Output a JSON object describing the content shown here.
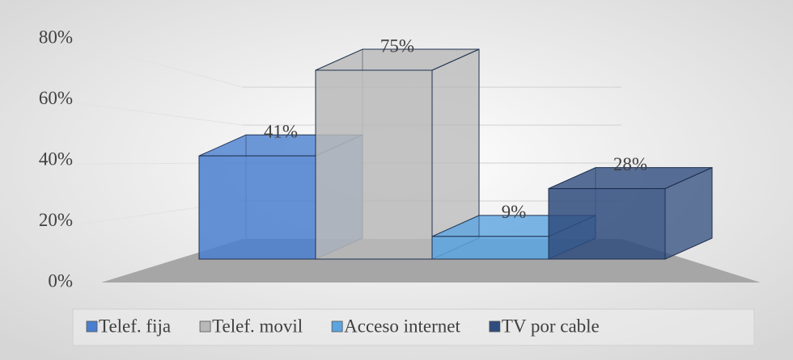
{
  "chart_data": {
    "type": "bar3d",
    "series": [
      {
        "name": "Telef. fija",
        "color": "#4a7fd0",
        "values": [
          41
        ],
        "value_labels": [
          "41%"
        ]
      },
      {
        "name": "Telef. movil",
        "color": "#b8b8b8",
        "values": [
          75
        ],
        "value_labels": [
          "75%"
        ]
      },
      {
        "name": "Acceso internet",
        "color": "#5ba4e0",
        "values": [
          9
        ],
        "value_labels": [
          "9%"
        ]
      },
      {
        "name": "TV por cable",
        "color": "#2f4c7e",
        "values": [
          28
        ],
        "value_labels": [
          "28%"
        ]
      }
    ],
    "ylim": [
      0,
      80
    ],
    "yticks": [
      {
        "value": 0,
        "label": "0%"
      },
      {
        "value": 20,
        "label": "20%"
      },
      {
        "value": 40,
        "label": "40%"
      },
      {
        "value": 60,
        "label": "60%"
      },
      {
        "value": 80,
        "label": "80%"
      }
    ],
    "grid": true,
    "legend": "bottom"
  }
}
